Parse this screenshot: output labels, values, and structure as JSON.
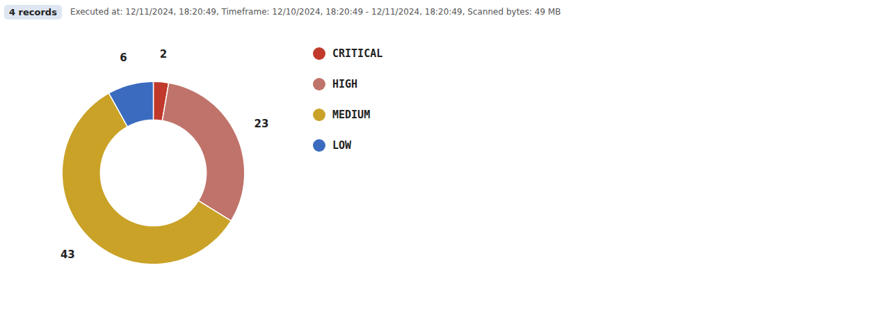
{
  "chart_data": {
    "type": "donut",
    "title": "4 records",
    "subtitle": "Executed at: 12/11/2024, 18:20:49, Timeframe: 12/10/2024, 18:20:49 - 12/11/2024, 18:20:49, Scanned bytes: 49 MB",
    "categories": [
      "CRITICAL",
      "HIGH",
      "MEDIUM",
      "LOW"
    ],
    "values": [
      2,
      23,
      43,
      6
    ],
    "colors": [
      "#c0392b",
      "#c0736a",
      "#c9a227",
      "#3a6bbf"
    ],
    "data_labels": true,
    "legend": "right"
  }
}
